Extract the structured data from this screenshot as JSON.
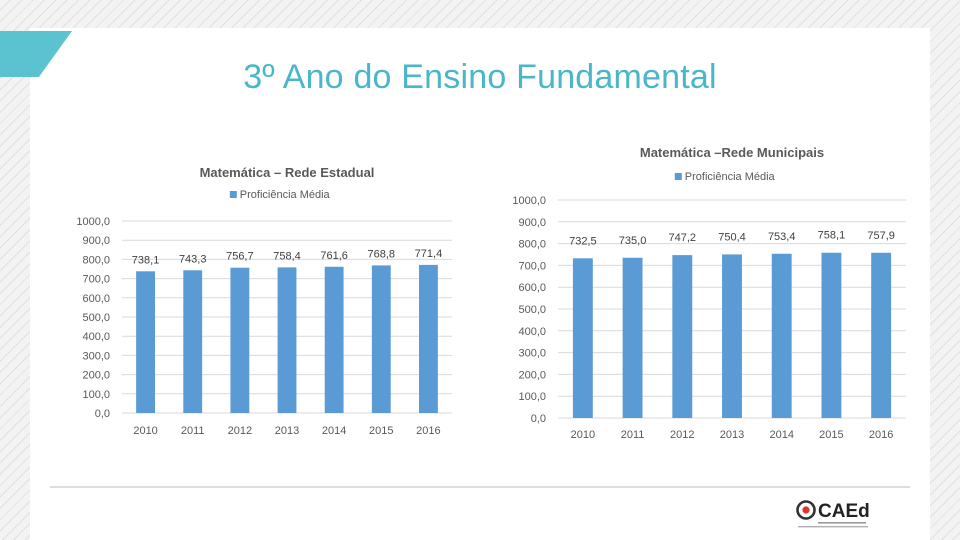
{
  "slide": {
    "title": "3º Ano do Ensino Fundamental"
  },
  "logo": {
    "text": "CAEd",
    "icon": "caed-logo-icon"
  },
  "colors": {
    "accent": "#5bc3cf",
    "title": "#4ab7c9",
    "bar": "#5b9bd5",
    "grid": "#d9d9d9",
    "text": "#595959"
  },
  "chart_data": [
    {
      "type": "bar",
      "title": "Matemática – Rede Estadual",
      "legend": "Proficiência Média",
      "legend_position": "top",
      "categories": [
        "2010",
        "2011",
        "2012",
        "2013",
        "2014",
        "2015",
        "2016"
      ],
      "values": [
        738.1,
        743.3,
        756.7,
        758.4,
        761.6,
        768.8,
        771.4
      ],
      "value_labels": [
        "738,1",
        "743,3",
        "756,7",
        "758,4",
        "761,6",
        "768,8",
        "771,4"
      ],
      "y_ticks": [
        "0,0",
        "100,0",
        "200,0",
        "300,0",
        "400,0",
        "500,0",
        "600,0",
        "700,0",
        "800,0",
        "900,0",
        "1000,0"
      ],
      "ylim": [
        0,
        1000
      ],
      "grid": true
    },
    {
      "type": "bar",
      "title": "Matemática –Rede Municipais",
      "legend": "Proficiência Média",
      "legend_position": "top",
      "categories": [
        "2010",
        "2011",
        "2012",
        "2013",
        "2014",
        "2015",
        "2016"
      ],
      "values": [
        732.5,
        735.0,
        747.2,
        750.4,
        753.4,
        758.1,
        757.9
      ],
      "value_labels": [
        "732,5",
        "735,0",
        "747,2",
        "750,4",
        "753,4",
        "758,1",
        "757,9"
      ],
      "y_ticks": [
        "0,0",
        "100,0",
        "200,0",
        "300,0",
        "400,0",
        "500,0",
        "600,0",
        "700,0",
        "800,0",
        "900,0",
        "1000,0"
      ],
      "ylim": [
        0,
        1000
      ],
      "grid": true
    }
  ]
}
